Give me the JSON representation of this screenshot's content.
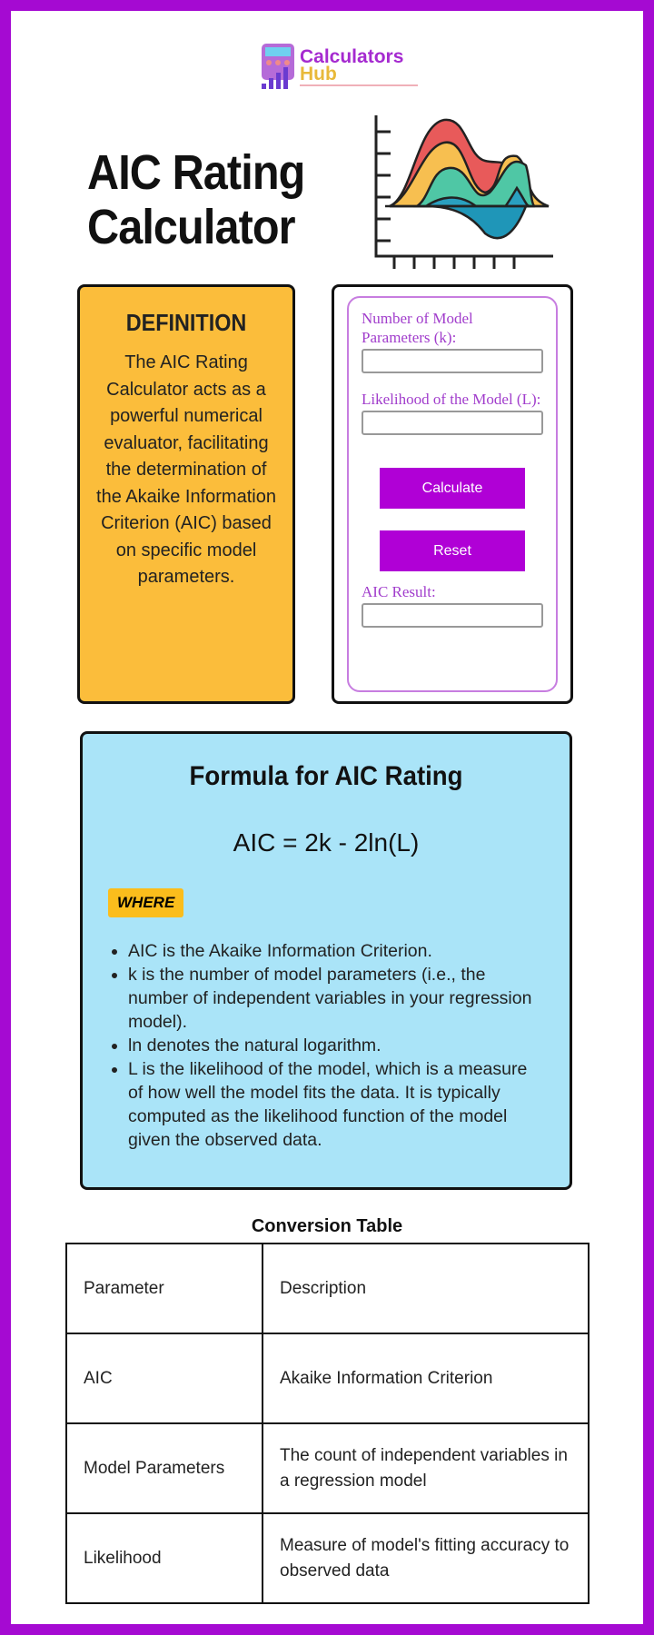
{
  "brand": {
    "line1": "Calculators",
    "line2": "Hub",
    "colors": {
      "purple": "#a52ad0",
      "gold": "#e8b93a"
    }
  },
  "title": {
    "line1": "AIC Rating",
    "line2": "Calculator"
  },
  "definition": {
    "heading": "DEFINITION",
    "text": "The AIC Rating Calculator acts as a powerful numerical evaluator, facilitating the determination of the Akaike Information Criterion (AIC) based on specific model parameters."
  },
  "calculator": {
    "k_label": "Number of Model Parameters (k):",
    "k_value": "",
    "l_label": "Likelihood of the Model (L):",
    "l_value": "",
    "calculate": "Calculate",
    "reset": "Reset",
    "result_label": "AIC Result:",
    "result_value": ""
  },
  "formula": {
    "heading": "Formula for AIC Rating",
    "equation": "AIC = 2k - 2ln(L)",
    "where": "WHERE",
    "bullets": [
      "AIC is the Akaike Information Criterion.",
      "k is the number of model parameters (i.e., the number of independent variables in your regression model).",
      "ln denotes the natural logarithm.",
      "L is the likelihood of the model, which is a measure of how well the model fits the data. It is typically computed as the likelihood function of the model given the observed data."
    ]
  },
  "table": {
    "title": "Conversion Table",
    "rows": [
      [
        "Parameter",
        "Description"
      ],
      [
        "AIC",
        "Akaike Information Criterion"
      ],
      [
        "Model Parameters",
        "The count of independent variables in a regression model"
      ],
      [
        "Likelihood",
        "Measure of model's fitting accuracy to observed data"
      ]
    ]
  },
  "colors": {
    "frame": "#a50ad2",
    "definition_bg": "#fbbd3b",
    "formula_bg": "#aae4f8",
    "button": "#b000d6"
  }
}
